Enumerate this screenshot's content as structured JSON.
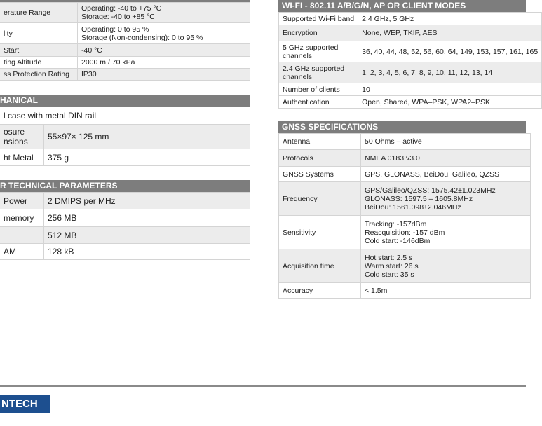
{
  "environment": {
    "rows": [
      {
        "label": "erature Range",
        "value": "Operating: -40 to +75 °C\nStorage:  -40 to +85 °C"
      },
      {
        "label": "lity",
        "value": "Operating: 0 to 95 %\nStorage (Non-condensing):  0 to 95 %"
      },
      {
        "label": "Start",
        "value": "-40 °C"
      },
      {
        "label": "ting Altitude",
        "value": "2000 m / 70 kPa"
      },
      {
        "label": "ss Protection Rating",
        "value": "IP30"
      }
    ]
  },
  "mechanical": {
    "title": "HANICAL",
    "full_row": "l case with metal DIN rail",
    "rows": [
      {
        "label": "osure\nnsions",
        "value": "55×97× 125 mm"
      },
      {
        "label": "ht Metal",
        "value": "375 g"
      }
    ]
  },
  "other": {
    "title": "R TECHNICAL PARAMETERS",
    "rows": [
      {
        "label": "Power",
        "value": "2 DMIPS per MHz"
      },
      {
        "label": " memory",
        "value": "256 MB"
      },
      {
        "label": "",
        "value": "512 MB"
      },
      {
        "label": "AM",
        "value": "128 kB"
      }
    ]
  },
  "wifi": {
    "title": "WI-FI - 802.11 A/B/G/N, AP OR CLIENT MODES",
    "rows": [
      {
        "label": "Supported Wi-Fi band",
        "value": "2.4 GHz, 5 GHz"
      },
      {
        "label": "Encryption",
        "value": "None, WEP, TKIP, AES"
      },
      {
        "label": "5 GHz supported\nchannels",
        "value": "36, 40, 44, 48, 52, 56, 60, 64, 149, 153, 157, 161, 165"
      },
      {
        "label": "2.4 GHz supported\nchannels",
        "value": "1, 2, 3, 4, 5, 6, 7, 8, 9, 10, 11, 12, 13, 14"
      },
      {
        "label": "Number of clients",
        "value": "10"
      },
      {
        "label": "Authentication",
        "value": "Open, Shared, WPA–PSK, WPA2–PSK"
      }
    ]
  },
  "gnss": {
    "title": "GNSS SPECIFICATIONS",
    "rows": [
      {
        "label": "Antenna",
        "value": "50 Ohms – active"
      },
      {
        "label": "Protocols",
        "value": "NMEA 0183 v3.0"
      },
      {
        "label": "GNSS Systems",
        "value": "GPS, GLONASS, BeiDou, Galileo, QZSS"
      },
      {
        "label": "Frequency",
        "value": "GPS/Galileo/QZSS: 1575.42±1.023MHz\nGLONASS: 1597.5 – 1605.8MHz\nBeiDou: 1561.098±2.046MHz"
      },
      {
        "label": "Sensitivity",
        "value": "Tracking: -157dBm\nReacquisition: -157 dBm\nCold start: -146dBm"
      },
      {
        "label": "Acquisition time",
        "value": "Hot start: 2.5 s\nWarm start: 26 s\nCold start: 35 s"
      },
      {
        "label": "Accuracy",
        "value": "< 1.5m"
      }
    ]
  },
  "footer": {
    "logo": "NTECH",
    "logo_color": "#1d4f8f"
  }
}
